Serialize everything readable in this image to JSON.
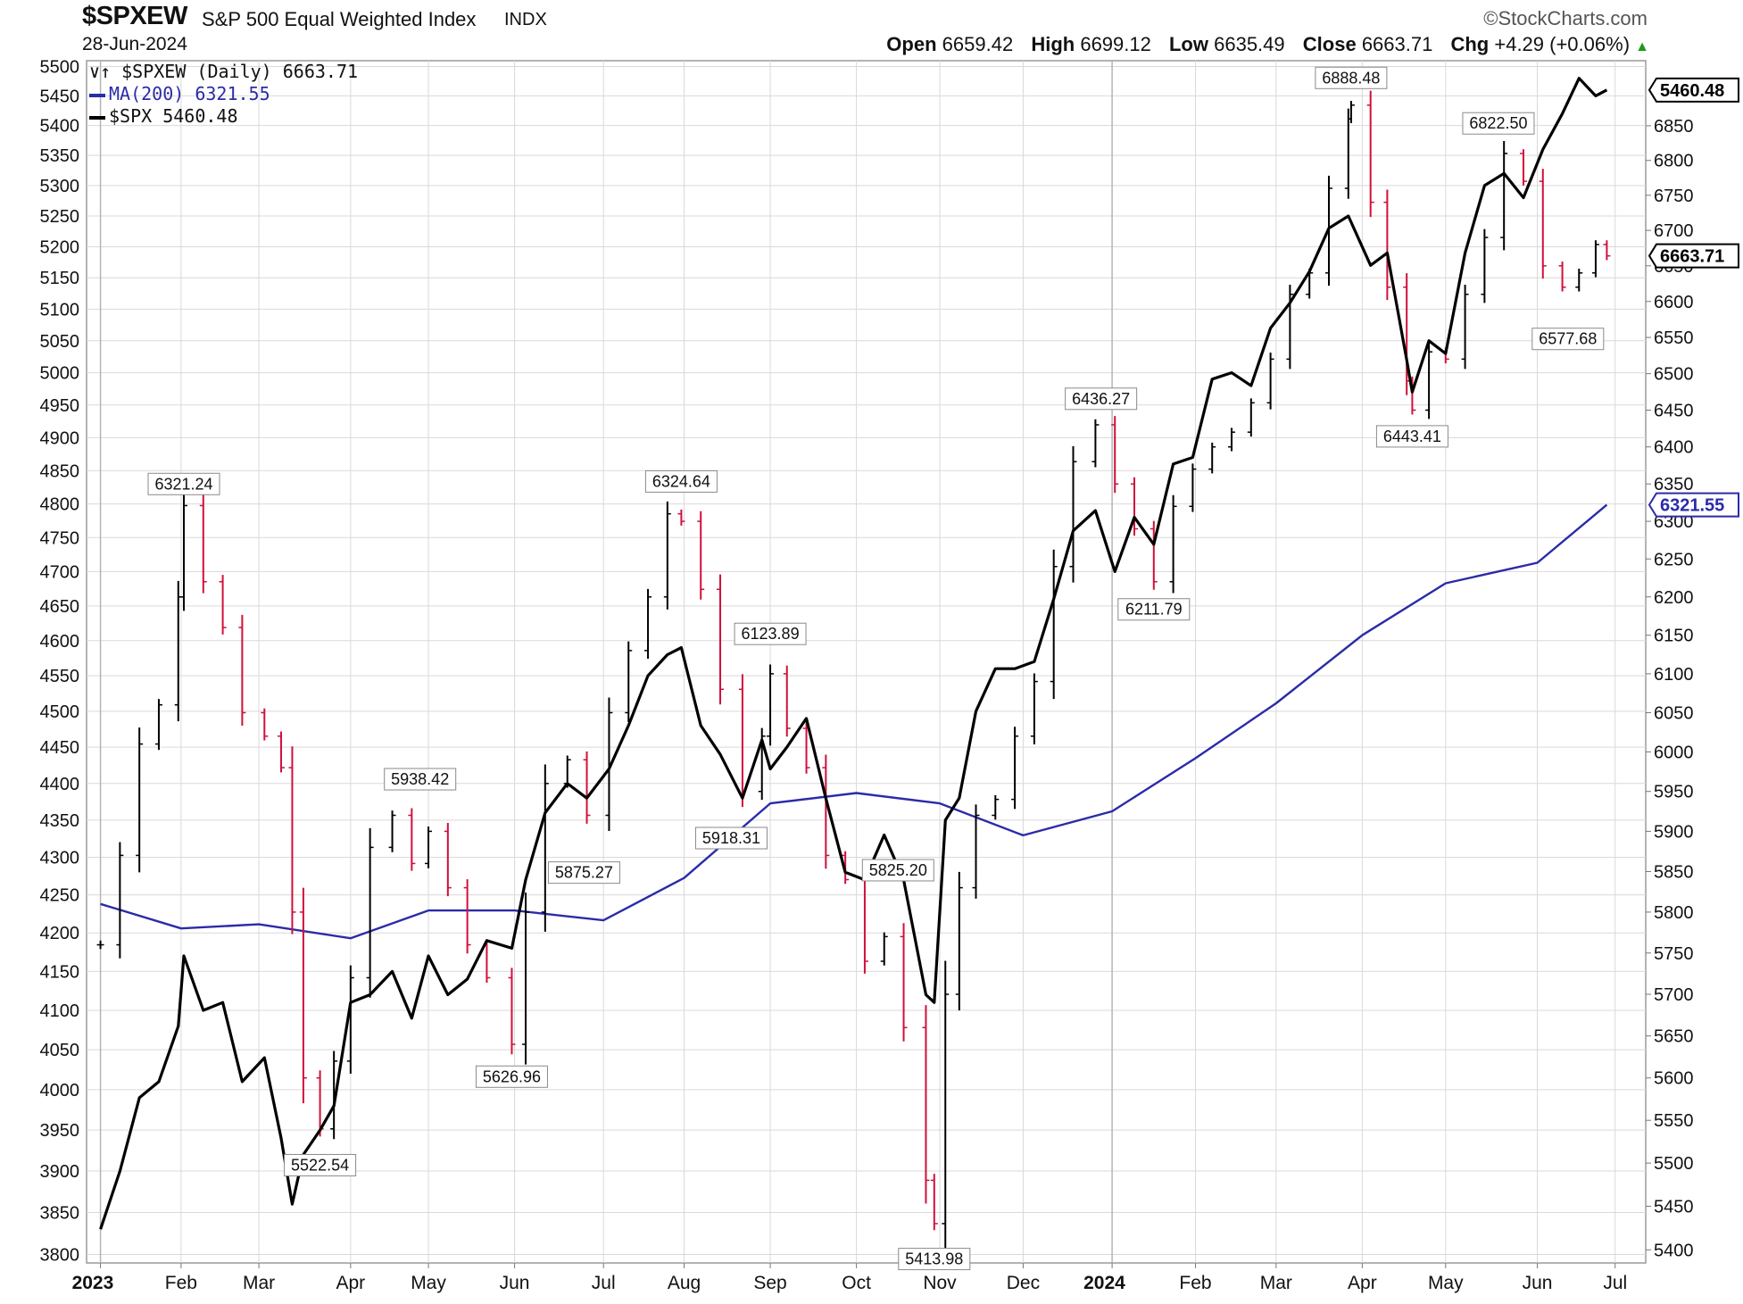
{
  "header": {
    "symbol": "$SPXEW",
    "name": "S&P 500 Equal Weighted Index",
    "type": "INDX",
    "brand": "StockCharts.com",
    "date": "28-Jun-2024",
    "ohlc": {
      "open_label": "Open",
      "open": "6659.42",
      "high_label": "High",
      "high": "6699.12",
      "low_label": "Low",
      "low": "6635.49",
      "close_label": "Close",
      "close": "6663.71",
      "chg_label": "Chg",
      "chg": "+4.29 (+0.06%)"
    }
  },
  "legend": {
    "main": "$SPXEW (Daily) 6663.71",
    "ma": "MA(200) 6321.55",
    "spx": "$SPX 5460.48"
  },
  "colors": {
    "up_bar": "#000000",
    "down_bar": "#d0103a",
    "ma_line": "#2b2ba8",
    "spx_line": "#000000",
    "grid": "#d9d9d9",
    "annotation_box": "#ffffff"
  },
  "chart_data": {
    "type": "line",
    "title": "$SPXEW S&P 500 Equal Weighted Index",
    "xlabel": "",
    "ylabel": "",
    "x_ticks": [
      "2023",
      "Feb",
      "Mar",
      "Apr",
      "May",
      "Jun",
      "Jul",
      "Aug",
      "Sep",
      "Oct",
      "Nov",
      "Dec",
      "2024",
      "Feb",
      "Mar",
      "Apr",
      "May",
      "Jun",
      "Jul"
    ],
    "x_tick_dates": [
      "2023-01-03",
      "2023-02-01",
      "2023-03-01",
      "2023-04-03",
      "2023-05-01",
      "2023-06-01",
      "2023-07-03",
      "2023-08-01",
      "2023-09-01",
      "2023-10-02",
      "2023-11-01",
      "2023-12-01",
      "2024-01-02",
      "2024-02-01",
      "2024-03-01",
      "2024-04-01",
      "2024-05-01",
      "2024-06-03",
      "2024-07-01"
    ],
    "left_axis": {
      "label": "$SPX",
      "ticks": [
        3800,
        3850,
        3900,
        3950,
        4000,
        4050,
        4100,
        4150,
        4200,
        4250,
        4300,
        4350,
        4400,
        4450,
        4500,
        4550,
        4600,
        4650,
        4700,
        4750,
        4800,
        4850,
        4900,
        4950,
        5000,
        5050,
        5100,
        5150,
        5200,
        5250,
        5300,
        5350,
        5400,
        5450,
        5500
      ],
      "range": [
        3790,
        5510
      ],
      "scale": "log"
    },
    "right_axis": {
      "label": "$SPXEW",
      "ticks": [
        5400,
        5450,
        5500,
        5550,
        5600,
        5650,
        5700,
        5750,
        5800,
        5850,
        5900,
        5950,
        6000,
        6050,
        6100,
        6150,
        6200,
        6250,
        6300,
        6350,
        6400,
        6450,
        6500,
        6550,
        6600,
        6650,
        6700,
        6750,
        6800,
        6850
      ],
      "range": [
        5385,
        6945
      ],
      "scale": "log"
    },
    "grid": true,
    "legend_position": "top-left",
    "series": [
      {
        "name": "$SPXEW (Daily)",
        "style": "ohlc-bars",
        "axis": "right",
        "x": [
          "2023-01-03",
          "2023-01-10",
          "2023-01-17",
          "2023-01-24",
          "2023-01-31",
          "2023-02-02",
          "2023-02-09",
          "2023-02-16",
          "2023-02-23",
          "2023-03-03",
          "2023-03-09",
          "2023-03-13",
          "2023-03-17",
          "2023-03-23",
          "2023-03-28",
          "2023-04-03",
          "2023-04-10",
          "2023-04-18",
          "2023-04-25",
          "2023-05-01",
          "2023-05-08",
          "2023-05-15",
          "2023-05-22",
          "2023-05-31",
          "2023-06-05",
          "2023-06-12",
          "2023-06-20",
          "2023-06-27",
          "2023-07-05",
          "2023-07-12",
          "2023-07-19",
          "2023-07-26",
          "2023-07-31",
          "2023-08-07",
          "2023-08-14",
          "2023-08-22",
          "2023-08-29",
          "2023-09-01",
          "2023-09-07",
          "2023-09-14",
          "2023-09-21",
          "2023-09-28",
          "2023-10-05",
          "2023-10-12",
          "2023-10-19",
          "2023-10-27",
          "2023-10-30",
          "2023-11-03",
          "2023-11-08",
          "2023-11-14",
          "2023-11-21",
          "2023-11-28",
          "2023-12-05",
          "2023-12-12",
          "2023-12-19",
          "2023-12-27",
          "2024-01-03",
          "2024-01-10",
          "2024-01-17",
          "2024-01-24",
          "2024-01-31",
          "2024-02-07",
          "2024-02-14",
          "2024-02-21",
          "2024-02-28",
          "2024-03-06",
          "2024-03-13",
          "2024-03-20",
          "2024-03-27",
          "2024-03-28",
          "2024-04-04",
          "2024-04-10",
          "2024-04-17",
          "2024-04-19",
          "2024-04-25",
          "2024-05-01",
          "2024-05-08",
          "2024-05-15",
          "2024-05-22",
          "2024-05-29",
          "2024-06-05",
          "2024-06-12",
          "2024-06-18",
          "2024-06-24",
          "2024-06-28"
        ],
        "values": [
          5760,
          5870,
          6010,
          6060,
          6200,
          6321,
          6220,
          6160,
          6050,
          6020,
          5980,
          5800,
          5600,
          5540,
          5620,
          5720,
          5880,
          5920,
          5860,
          5900,
          5830,
          5760,
          5720,
          5640,
          5800,
          5960,
          5990,
          5920,
          6050,
          6130,
          6200,
          6310,
          6300,
          6210,
          6080,
          5950,
          6020,
          6100,
          6030,
          5980,
          5870,
          5840,
          5740,
          5770,
          5660,
          5480,
          5430,
          5700,
          5830,
          5920,
          5940,
          6020,
          6090,
          6240,
          6380,
          6430,
          6350,
          6290,
          6220,
          6320,
          6370,
          6400,
          6420,
          6460,
          6520,
          6610,
          6640,
          6760,
          6860,
          6880,
          6740,
          6620,
          6490,
          6450,
          6530,
          6520,
          6610,
          6690,
          6810,
          6770,
          6650,
          6620,
          6640,
          6680,
          6664
        ],
        "annotations": [
          {
            "date": "2023-02-02",
            "value": 6321.24,
            "label": "6321.24",
            "kind": "high"
          },
          {
            "date": "2023-03-23",
            "value": 5522.54,
            "label": "5522.54",
            "kind": "low"
          },
          {
            "date": "2023-04-28",
            "value": 5938.42,
            "label": "5938.42",
            "kind": "high"
          },
          {
            "date": "2023-05-31",
            "value": 5626.96,
            "label": "5626.96",
            "kind": "low"
          },
          {
            "date": "2023-06-26",
            "value": 5875.27,
            "label": "5875.27",
            "kind": "low"
          },
          {
            "date": "2023-07-31",
            "value": 6324.64,
            "label": "6324.64",
            "kind": "high"
          },
          {
            "date": "2023-08-18",
            "value": 5918.31,
            "label": "5918.31",
            "kind": "low"
          },
          {
            "date": "2023-09-01",
            "value": 6123.89,
            "label": "6123.89",
            "kind": "high"
          },
          {
            "date": "2023-10-17",
            "value": 5825.2,
            "label": "5825.20",
            "kind": "high"
          },
          {
            "date": "2023-10-30",
            "value": 5413.98,
            "label": "5413.98",
            "kind": "low"
          },
          {
            "date": "2023-12-29",
            "value": 6436.27,
            "label": "6436.27",
            "kind": "high"
          },
          {
            "date": "2024-01-17",
            "value": 6211.79,
            "label": "6211.79",
            "kind": "low"
          },
          {
            "date": "2024-03-28",
            "value": 6888.48,
            "label": "6888.48",
            "kind": "high"
          },
          {
            "date": "2024-04-19",
            "value": 6443.41,
            "label": "6443.41",
            "kind": "low"
          },
          {
            "date": "2024-05-20",
            "value": 6822.5,
            "label": "6822.50",
            "kind": "high"
          },
          {
            "date": "2024-06-14",
            "value": 6577.68,
            "label": "6577.68",
            "kind": "low"
          }
        ],
        "last_value_label": "6663.71"
      },
      {
        "name": "MA(200)",
        "style": "line",
        "axis": "right",
        "x": [
          "2023-01-03",
          "2023-02-01",
          "2023-03-01",
          "2023-04-03",
          "2023-05-01",
          "2023-06-01",
          "2023-07-03",
          "2023-08-01",
          "2023-09-01",
          "2023-10-02",
          "2023-11-01",
          "2023-12-01",
          "2024-01-02",
          "2024-02-01",
          "2024-03-01",
          "2024-04-01",
          "2024-05-01",
          "2024-06-03",
          "2024-06-28"
        ],
        "values": [
          5810,
          5780,
          5785,
          5768,
          5802,
          5802,
          5790,
          5842,
          5935,
          5948,
          5935,
          5895,
          5925,
          5992,
          6062,
          6150,
          6218,
          6245,
          6322
        ],
        "last_value_label": "6321.55"
      },
      {
        "name": "$SPX",
        "style": "line",
        "axis": "left",
        "x": [
          "2023-01-03",
          "2023-01-10",
          "2023-01-17",
          "2023-01-24",
          "2023-01-31",
          "2023-02-02",
          "2023-02-09",
          "2023-02-16",
          "2023-02-23",
          "2023-03-03",
          "2023-03-09",
          "2023-03-13",
          "2023-03-17",
          "2023-03-23",
          "2023-03-28",
          "2023-04-03",
          "2023-04-10",
          "2023-04-18",
          "2023-04-25",
          "2023-05-01",
          "2023-05-08",
          "2023-05-15",
          "2023-05-22",
          "2023-05-31",
          "2023-06-05",
          "2023-06-12",
          "2023-06-20",
          "2023-06-27",
          "2023-07-05",
          "2023-07-12",
          "2023-07-19",
          "2023-07-26",
          "2023-07-31",
          "2023-08-07",
          "2023-08-14",
          "2023-08-22",
          "2023-08-29",
          "2023-09-01",
          "2023-09-07",
          "2023-09-14",
          "2023-09-21",
          "2023-09-28",
          "2023-10-05",
          "2023-10-12",
          "2023-10-19",
          "2023-10-27",
          "2023-10-30",
          "2023-11-03",
          "2023-11-08",
          "2023-11-14",
          "2023-11-21",
          "2023-11-28",
          "2023-12-05",
          "2023-12-12",
          "2023-12-19",
          "2023-12-27",
          "2024-01-03",
          "2024-01-10",
          "2024-01-17",
          "2024-01-24",
          "2024-01-31",
          "2024-02-07",
          "2024-02-14",
          "2024-02-21",
          "2024-02-28",
          "2024-03-06",
          "2024-03-13",
          "2024-03-20",
          "2024-03-27",
          "2024-03-28",
          "2024-04-04",
          "2024-04-10",
          "2024-04-17",
          "2024-04-19",
          "2024-04-25",
          "2024-05-01",
          "2024-05-08",
          "2024-05-15",
          "2024-05-22",
          "2024-05-29",
          "2024-06-05",
          "2024-06-12",
          "2024-06-18",
          "2024-06-24",
          "2024-06-28"
        ],
        "values": [
          3830,
          3900,
          3990,
          4010,
          4080,
          4170,
          4100,
          4110,
          4010,
          4040,
          3940,
          3860,
          3920,
          3950,
          3980,
          4110,
          4120,
          4150,
          4090,
          4170,
          4120,
          4140,
          4190,
          4180,
          4270,
          4360,
          4400,
          4380,
          4420,
          4480,
          4550,
          4580,
          4590,
          4480,
          4440,
          4380,
          4460,
          4420,
          4450,
          4490,
          4380,
          4280,
          4270,
          4330,
          4270,
          4120,
          4110,
          4350,
          4380,
          4500,
          4560,
          4560,
          4570,
          4660,
          4760,
          4790,
          4700,
          4780,
          4740,
          4860,
          4870,
          4990,
          5000,
          4980,
          5070,
          5110,
          5160,
          5230,
          5250,
          5240,
          5170,
          5190,
          5020,
          4970,
          5050,
          5030,
          5190,
          5300,
          5320,
          5280,
          5360,
          5420,
          5480,
          5450,
          5460
        ],
        "last_value_label": "5460.48"
      }
    ]
  }
}
